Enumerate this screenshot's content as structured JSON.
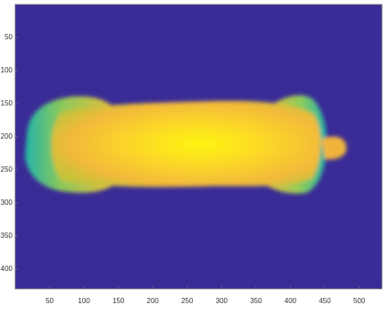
{
  "chart_data": {
    "type": "heatmap",
    "xlim": [
      0,
      533
    ],
    "xticks": [
      50,
      100,
      150,
      200,
      250,
      300,
      350,
      400,
      450,
      500
    ],
    "ylim": [
      0,
      430
    ],
    "yticks": [
      50,
      100,
      150,
      200,
      250,
      300,
      350,
      400
    ],
    "y_direction": "reverse",
    "background": "#3a2c96"
  }
}
